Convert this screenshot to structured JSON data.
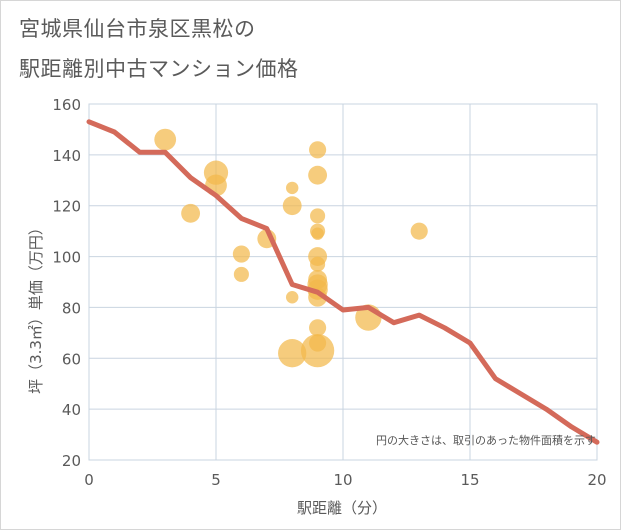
{
  "header": {
    "title_line1": "宮城県仙台市泉区黒松の",
    "title_line2": "駅距離別中古マンション価格"
  },
  "chart_data": {
    "type": "scatter",
    "title": "宮城県仙台市泉区黒松の駅距離別中古マンション価格",
    "xlabel": "駅距離（分）",
    "ylabel": "坪（3.3㎡）単価（万円）",
    "xlim": [
      0,
      20
    ],
    "ylim": [
      20,
      160
    ],
    "x_ticks": [
      0,
      5,
      10,
      15,
      20
    ],
    "y_ticks": [
      20,
      40,
      60,
      80,
      100,
      120,
      140,
      160
    ],
    "grid": true,
    "note": "円の大きさは、取引のあった物件面積を示す",
    "colors": {
      "bubble": "#f2b84b",
      "line": "#d46a5a",
      "grid": "#c9d4e0"
    },
    "bubbles": [
      {
        "x": 3,
        "y": 146,
        "size": 3
      },
      {
        "x": 4,
        "y": 117,
        "size": 2
      },
      {
        "x": 5,
        "y": 133,
        "size": 4
      },
      {
        "x": 5,
        "y": 128,
        "size": 3
      },
      {
        "x": 6,
        "y": 101,
        "size": 1.5
      },
      {
        "x": 6,
        "y": 93,
        "size": 1
      },
      {
        "x": 7,
        "y": 107,
        "size": 2
      },
      {
        "x": 8,
        "y": 127,
        "size": 0.5
      },
      {
        "x": 8,
        "y": 120,
        "size": 2
      },
      {
        "x": 8,
        "y": 84,
        "size": 0.5
      },
      {
        "x": 8,
        "y": 62,
        "size": 6
      },
      {
        "x": 9,
        "y": 142,
        "size": 1.5
      },
      {
        "x": 9,
        "y": 132,
        "size": 2
      },
      {
        "x": 9,
        "y": 116,
        "size": 1
      },
      {
        "x": 9,
        "y": 110,
        "size": 1
      },
      {
        "x": 9,
        "y": 109,
        "size": 0.5
      },
      {
        "x": 9,
        "y": 100,
        "size": 2
      },
      {
        "x": 9,
        "y": 97,
        "size": 1
      },
      {
        "x": 9,
        "y": 91,
        "size": 2
      },
      {
        "x": 9,
        "y": 89,
        "size": 2.5
      },
      {
        "x": 9,
        "y": 87,
        "size": 2.5
      },
      {
        "x": 9,
        "y": 84,
        "size": 2
      },
      {
        "x": 9,
        "y": 72,
        "size": 1.5
      },
      {
        "x": 9,
        "y": 66,
        "size": 1.5
      },
      {
        "x": 9,
        "y": 63,
        "size": 9
      },
      {
        "x": 11,
        "y": 76,
        "size": 5
      },
      {
        "x": 13,
        "y": 110,
        "size": 1.5
      }
    ],
    "series": [
      {
        "x": [
          0,
          1,
          2,
          3,
          4,
          5,
          6,
          7,
          8,
          9,
          10,
          11,
          12,
          13,
          14,
          15,
          16,
          17,
          18,
          19,
          20
        ],
        "values": [
          153,
          149,
          141,
          141,
          131,
          124,
          115,
          111,
          89,
          86,
          79,
          80,
          74,
          77,
          72,
          66,
          52,
          46,
          40,
          33,
          27
        ]
      }
    ]
  }
}
